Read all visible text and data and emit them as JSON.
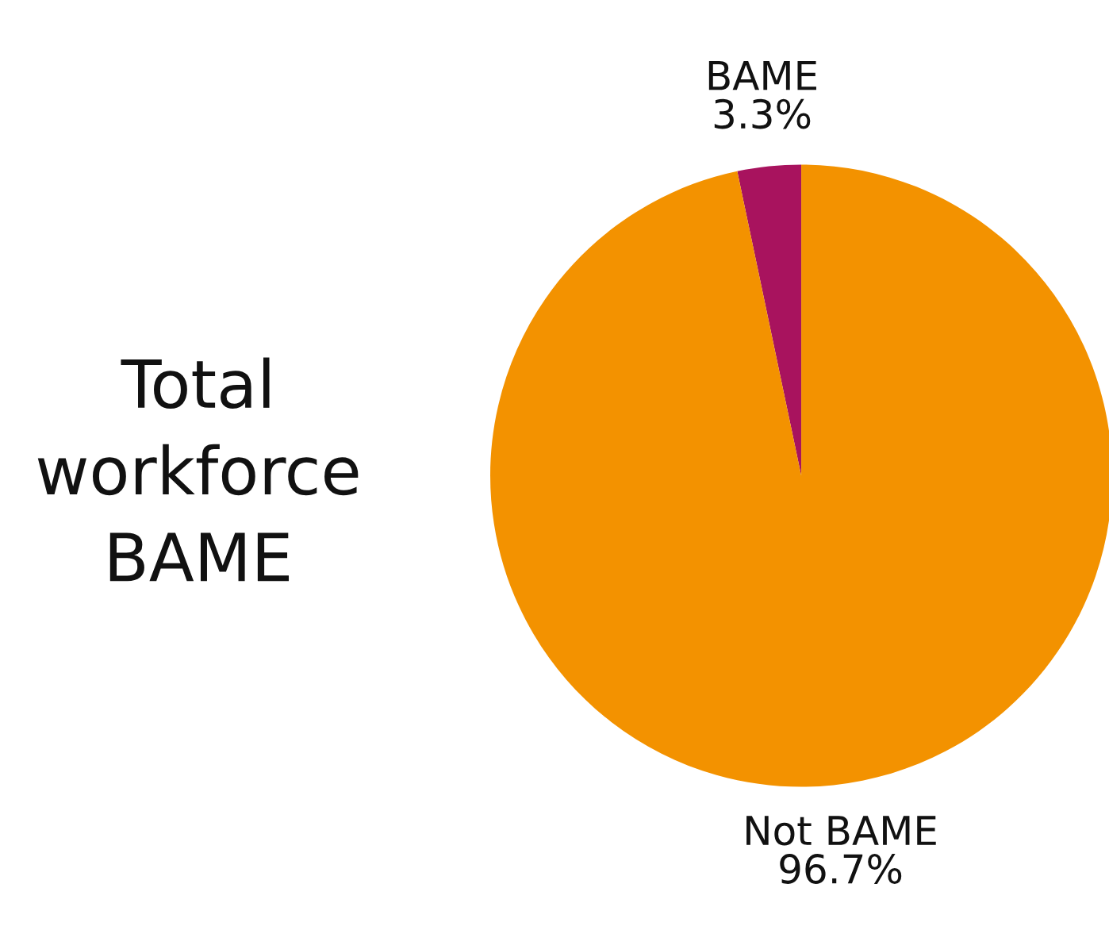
{
  "chart_data": {
    "type": "pie",
    "title": "Total workforce BAME",
    "categories": [
      "BAME",
      "Not BAME"
    ],
    "values": [
      3.3,
      96.7
    ],
    "colors": [
      "#a8135e",
      "#f39200"
    ],
    "value_labels": [
      "3.3%",
      "96.7%"
    ]
  }
}
